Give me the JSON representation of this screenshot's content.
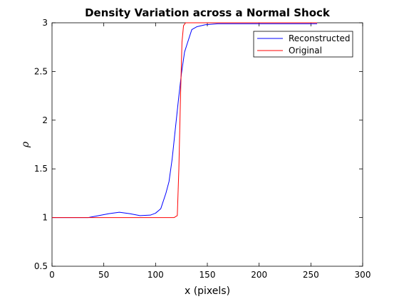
{
  "chart_data": {
    "type": "line",
    "title": "Density Variation across a Normal Shock",
    "xlabel": "x (pixels)",
    "ylabel": "ρ",
    "xlim": [
      0,
      300
    ],
    "ylim": [
      0.5,
      3
    ],
    "xticks": [
      0,
      50,
      100,
      150,
      200,
      250,
      300
    ],
    "yticks": [
      0.5,
      1,
      1.5,
      2,
      2.5,
      3
    ],
    "xtick_labels": [
      "0",
      "50",
      "100",
      "150",
      "200",
      "250",
      "300"
    ],
    "ytick_labels": [
      "0.5",
      "1",
      "1.5",
      "2",
      "2.5",
      "3"
    ],
    "grid": false,
    "legend_position": "top-right",
    "series": [
      {
        "name": "Reconstructed",
        "color": "#0000ff",
        "x": [
          0,
          35,
          45,
          55,
          65,
          75,
          85,
          95,
          100,
          105,
          110,
          113,
          116,
          119,
          122,
          125,
          128,
          131,
          135,
          140,
          148,
          160,
          180,
          200,
          230,
          256
        ],
        "y": [
          1,
          1,
          1.02,
          1.04,
          1.055,
          1.04,
          1.02,
          1.025,
          1.045,
          1.09,
          1.25,
          1.37,
          1.6,
          1.9,
          2.2,
          2.48,
          2.7,
          2.8,
          2.93,
          2.96,
          2.98,
          2.99,
          2.99,
          2.99,
          2.99,
          2.99
        ]
      },
      {
        "name": "Original",
        "color": "#ff0000",
        "x": [
          0,
          118,
          121,
          122.5,
          124,
          125.5,
          127,
          129,
          135,
          150,
          200,
          256
        ],
        "y": [
          1,
          1,
          1.02,
          1.5,
          2.2,
          2.8,
          2.97,
          3,
          3,
          3,
          3,
          3
        ]
      }
    ]
  }
}
